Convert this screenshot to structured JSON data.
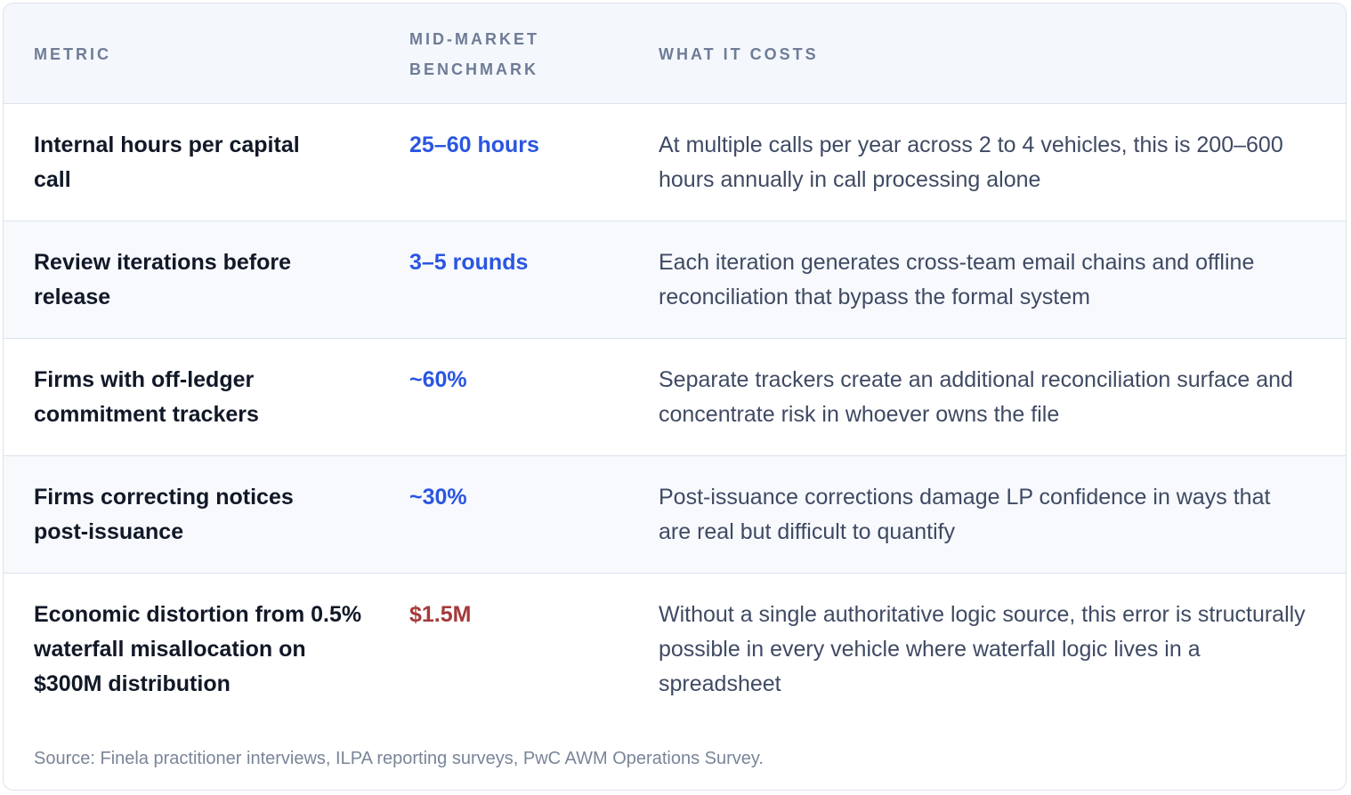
{
  "table": {
    "headers": {
      "metric": "Metric",
      "benchmark": "Mid-Market Benchmark",
      "cost": "What It Costs"
    },
    "rows": [
      {
        "metric": "Internal hours per capital call",
        "benchmark": "25–60 hours",
        "benchmark_color": "#2a56e0",
        "cost": "At multiple calls per year across 2 to 4 vehicles, this is 200–600 hours annually in call processing alone"
      },
      {
        "metric": "Review iterations before release",
        "benchmark": "3–5 rounds",
        "benchmark_color": "#2a56e0",
        "cost": "Each iteration generates cross-team email chains and offline reconciliation that bypass the formal system"
      },
      {
        "metric": "Firms with off-ledger commitment trackers",
        "benchmark": "~60%",
        "benchmark_color": "#2a56e0",
        "cost": "Separate trackers create an additional reconciliation surface and concentrate risk in whoever owns the file"
      },
      {
        "metric": "Firms correcting notices post-issuance",
        "benchmark": "~30%",
        "benchmark_color": "#2a56e0",
        "cost": "Post-issuance corrections damage LP confidence in ways that are real but difficult to quantify"
      },
      {
        "metric": "Economic distortion from 0.5% waterfall misallocation on $300M distribution",
        "benchmark": "$1.5M",
        "benchmark_color": "#a53a3a",
        "cost": "Without a single authoritative logic source, this error is structurally possible in every vehicle where waterfall logic lives in a spreadsheet"
      }
    ]
  },
  "source": "Source: Finela practitioner interviews, ILPA reporting surveys, PwC AWM Operations Survey."
}
